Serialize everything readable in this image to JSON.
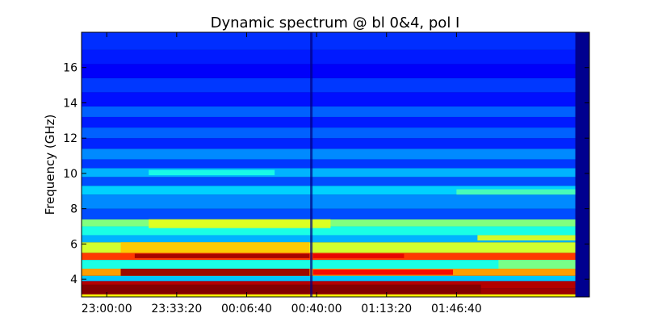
{
  "chart_data": {
    "type": "heatmap",
    "title": "Dynamic spectrum @ bl 0&4, pol I",
    "xlabel": "",
    "ylabel": "Frequency (GHz)",
    "ylim": [
      3.0,
      18.0
    ],
    "yticks": [
      "4",
      "6",
      "8",
      "10",
      "12",
      "14",
      "16"
    ],
    "xticks": [
      "23:00:00",
      "23:33:20",
      "00:06:40",
      "00:40:00",
      "01:13:20",
      "01:46:40"
    ],
    "xlim_seconds": [
      82080,
      96600
    ],
    "xtick_seconds": [
      82800,
      84800,
      86800,
      88800,
      90800,
      92800
    ],
    "colormap": "jet",
    "grid": false,
    "dark_channel_time_seconds": 88650,
    "bands": [
      {
        "f_low": 3.0,
        "f_high": 3.15,
        "time_start_seconds": 82080,
        "time_end_seconds": 96200,
        "level": 0.62
      },
      {
        "f_low": 3.15,
        "f_high": 3.5,
        "time_start_seconds": 82080,
        "time_end_seconds": 96200,
        "level": 0.97
      },
      {
        "f_low": 3.5,
        "f_high": 3.9,
        "time_start_seconds": 82080,
        "time_end_seconds": 96200,
        "level": 0.95
      },
      {
        "f_low": 3.9,
        "f_high": 4.2,
        "time_start_seconds": 82080,
        "time_end_seconds": 96200,
        "level": 0.32
      },
      {
        "f_low": 4.2,
        "f_high": 4.6,
        "time_start_seconds": 82080,
        "time_end_seconds": 96200,
        "level": 0.72
      },
      {
        "f_low": 4.6,
        "f_high": 5.1,
        "time_start_seconds": 82080,
        "time_end_seconds": 96200,
        "level": 0.4
      },
      {
        "f_low": 5.1,
        "f_high": 5.5,
        "time_start_seconds": 82080,
        "time_end_seconds": 96200,
        "level": 0.82
      },
      {
        "f_low": 5.5,
        "f_high": 6.1,
        "time_start_seconds": 82080,
        "time_end_seconds": 96200,
        "level": 0.58
      },
      {
        "f_low": 6.1,
        "f_high": 6.5,
        "time_start_seconds": 82080,
        "time_end_seconds": 96200,
        "level": 0.3
      },
      {
        "f_low": 6.5,
        "f_high": 7.0,
        "time_start_seconds": 82080,
        "time_end_seconds": 96200,
        "level": 0.4
      },
      {
        "f_low": 7.0,
        "f_high": 7.4,
        "time_start_seconds": 82080,
        "time_end_seconds": 96200,
        "level": 0.5
      },
      {
        "f_low": 7.4,
        "f_high": 8.0,
        "time_start_seconds": 82080,
        "time_end_seconds": 96200,
        "level": 0.2
      },
      {
        "f_low": 8.0,
        "f_high": 8.8,
        "time_start_seconds": 82080,
        "time_end_seconds": 96200,
        "level": 0.26
      },
      {
        "f_low": 8.8,
        "f_high": 9.3,
        "time_start_seconds": 82080,
        "time_end_seconds": 96200,
        "level": 0.33
      },
      {
        "f_low": 9.3,
        "f_high": 9.8,
        "time_start_seconds": 82080,
        "time_end_seconds": 96200,
        "level": 0.2
      },
      {
        "f_low": 9.8,
        "f_high": 10.3,
        "time_start_seconds": 82080,
        "time_end_seconds": 96200,
        "level": 0.3
      },
      {
        "f_low": 10.3,
        "f_high": 10.8,
        "time_start_seconds": 82080,
        "time_end_seconds": 96200,
        "level": 0.18
      },
      {
        "f_low": 10.8,
        "f_high": 11.4,
        "time_start_seconds": 82080,
        "time_end_seconds": 96200,
        "level": 0.26
      },
      {
        "f_low": 11.4,
        "f_high": 12.0,
        "time_start_seconds": 82080,
        "time_end_seconds": 96200,
        "level": 0.16
      },
      {
        "f_low": 12.0,
        "f_high": 12.6,
        "time_start_seconds": 82080,
        "time_end_seconds": 96200,
        "level": 0.22
      },
      {
        "f_low": 12.6,
        "f_high": 13.2,
        "time_start_seconds": 82080,
        "time_end_seconds": 96200,
        "level": 0.15
      },
      {
        "f_low": 13.2,
        "f_high": 13.8,
        "time_start_seconds": 82080,
        "time_end_seconds": 96200,
        "level": 0.22
      },
      {
        "f_low": 13.8,
        "f_high": 14.6,
        "time_start_seconds": 82080,
        "time_end_seconds": 96200,
        "level": 0.14
      },
      {
        "f_low": 14.6,
        "f_high": 15.4,
        "time_start_seconds": 82080,
        "time_end_seconds": 96200,
        "level": 0.18
      },
      {
        "f_low": 15.4,
        "f_high": 16.2,
        "time_start_seconds": 82080,
        "time_end_seconds": 96200,
        "level": 0.12
      },
      {
        "f_low": 16.2,
        "f_high": 17.0,
        "time_start_seconds": 82080,
        "time_end_seconds": 96200,
        "level": 0.15
      },
      {
        "f_low": 17.0,
        "f_high": 18.0,
        "time_start_seconds": 82080,
        "time_end_seconds": 96200,
        "level": 0.17
      }
    ],
    "hotspots": [
      {
        "f_low": 3.2,
        "f_high": 3.7,
        "time_start_seconds": 82080,
        "time_end_seconds": 93500,
        "level": 1.0
      },
      {
        "f_low": 4.2,
        "f_high": 4.6,
        "time_start_seconds": 83200,
        "time_end_seconds": 88600,
        "level": 0.98
      },
      {
        "f_low": 4.25,
        "f_high": 4.55,
        "time_start_seconds": 88700,
        "time_end_seconds": 92700,
        "level": 0.88
      },
      {
        "f_low": 5.2,
        "f_high": 5.45,
        "time_start_seconds": 83600,
        "time_end_seconds": 88600,
        "level": 0.97
      },
      {
        "f_low": 5.2,
        "f_high": 5.45,
        "time_start_seconds": 88700,
        "time_end_seconds": 91300,
        "level": 0.9
      },
      {
        "f_low": 5.5,
        "f_high": 6.1,
        "time_start_seconds": 83200,
        "time_end_seconds": 88600,
        "level": 0.68
      },
      {
        "f_low": 6.9,
        "f_high": 7.4,
        "time_start_seconds": 84000,
        "time_end_seconds": 89200,
        "level": 0.6
      },
      {
        "f_low": 9.9,
        "f_high": 10.2,
        "time_start_seconds": 84000,
        "time_end_seconds": 87600,
        "level": 0.4
      },
      {
        "f_low": 8.8,
        "f_high": 9.1,
        "time_start_seconds": 92800,
        "time_end_seconds": 96200,
        "level": 0.45
      },
      {
        "f_low": 6.2,
        "f_high": 6.5,
        "time_start_seconds": 93400,
        "time_end_seconds": 96200,
        "level": 0.6
      },
      {
        "f_low": 4.6,
        "f_high": 5.1,
        "time_start_seconds": 94000,
        "time_end_seconds": 96200,
        "level": 0.5
      }
    ]
  }
}
